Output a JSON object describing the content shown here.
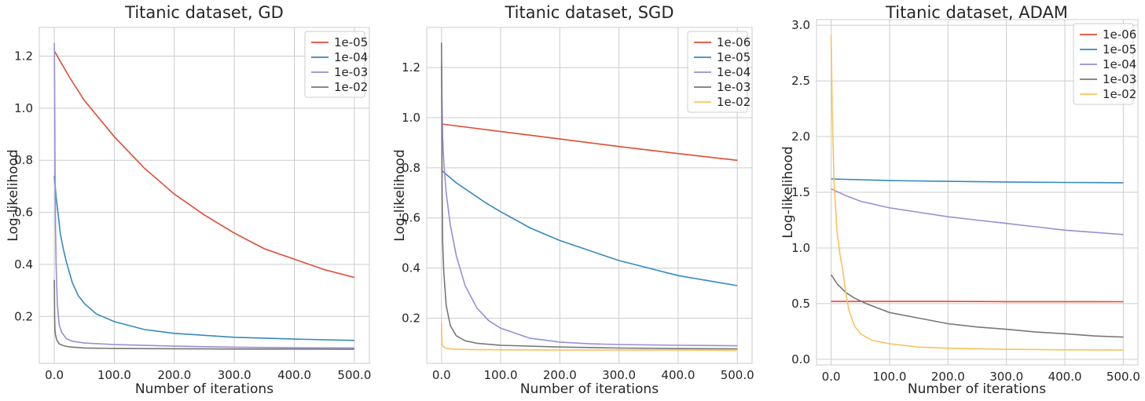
{
  "figure": {
    "background": "#ffffff",
    "colors": {
      "red": "#e24a33",
      "blue": "#348abd",
      "purple": "#988ed5",
      "gray": "#777777",
      "orange": "#fbc15e",
      "grid": "#cccccc",
      "text": "#262626"
    }
  },
  "chart_data": [
    {
      "type": "line",
      "title": "Titanic dataset, GD",
      "xlabel": "Number of iterations",
      "ylabel": "Log-likelihood",
      "xlim": [
        -25,
        525
      ],
      "ylim": [
        0.02,
        1.31
      ],
      "xticks": [
        0,
        100,
        200,
        300,
        400,
        500
      ],
      "xtick_labels": [
        "0.0",
        "100.0",
        "200.0",
        "300.0",
        "400.0",
        "500.0"
      ],
      "yticks": [
        0.2,
        0.4,
        0.6,
        0.8,
        1.0,
        1.2
      ],
      "ytick_labels": [
        "0.2",
        "0.4",
        "0.6",
        "0.8",
        "1.0",
        "1.2"
      ],
      "grid": true,
      "legend_position": "top-right",
      "series": [
        {
          "name": "1e-05",
          "color": "#e24a33",
          "x": [
            0,
            25,
            50,
            75,
            100,
            150,
            200,
            250,
            300,
            350,
            400,
            450,
            500
          ],
          "y": [
            1.22,
            1.12,
            1.03,
            0.96,
            0.89,
            0.77,
            0.67,
            0.59,
            0.52,
            0.46,
            0.42,
            0.38,
            0.35
          ]
        },
        {
          "name": "1e-04",
          "color": "#348abd",
          "x": [
            0,
            3,
            6,
            10,
            15,
            20,
            30,
            40,
            50,
            70,
            100,
            150,
            200,
            300,
            400,
            500
          ],
          "y": [
            0.74,
            0.66,
            0.6,
            0.52,
            0.46,
            0.41,
            0.33,
            0.28,
            0.25,
            0.21,
            0.18,
            0.15,
            0.135,
            0.12,
            0.113,
            0.108
          ]
        },
        {
          "name": "1e-03",
          "color": "#988ed5",
          "x": [
            0,
            0.5,
            1,
            2,
            3,
            5,
            8,
            12,
            20,
            30,
            50,
            100,
            200,
            300,
            400,
            500
          ],
          "y": [
            1.25,
            1.1,
            0.85,
            0.55,
            0.4,
            0.25,
            0.17,
            0.14,
            0.115,
            0.105,
            0.098,
            0.092,
            0.086,
            0.082,
            0.08,
            0.079
          ]
        },
        {
          "name": "1e-02",
          "color": "#777777",
          "x": [
            0,
            0.5,
            1,
            2,
            4,
            8,
            15,
            25,
            50,
            100,
            200,
            300,
            400,
            500
          ],
          "y": [
            0.34,
            0.2,
            0.15,
            0.13,
            0.11,
            0.095,
            0.088,
            0.083,
            0.079,
            0.077,
            0.076,
            0.075,
            0.075,
            0.074
          ]
        }
      ]
    },
    {
      "type": "line",
      "title": "Titanic dataset, SGD",
      "xlabel": "Number of iterations",
      "ylabel": "Log-likelihood",
      "xlim": [
        -25,
        525
      ],
      "ylim": [
        0.02,
        1.36
      ],
      "xticks": [
        0,
        100,
        200,
        300,
        400,
        500
      ],
      "xtick_labels": [
        "0.0",
        "100.0",
        "200.0",
        "300.0",
        "400.0",
        "500.0"
      ],
      "yticks": [
        0.2,
        0.4,
        0.6,
        0.8,
        1.0,
        1.2
      ],
      "ytick_labels": [
        "0.2",
        "0.4",
        "0.6",
        "0.8",
        "1.0",
        "1.2"
      ],
      "grid": true,
      "legend_position": "top-right",
      "series": [
        {
          "name": "1e-06",
          "color": "#e24a33",
          "x": [
            0,
            100,
            200,
            300,
            400,
            500
          ],
          "y": [
            0.975,
            0.945,
            0.915,
            0.885,
            0.857,
            0.83
          ]
        },
        {
          "name": "1e-05",
          "color": "#348abd",
          "x": [
            0,
            25,
            50,
            75,
            100,
            150,
            200,
            250,
            300,
            350,
            400,
            450,
            500
          ],
          "y": [
            0.79,
            0.74,
            0.7,
            0.66,
            0.625,
            0.56,
            0.51,
            0.47,
            0.43,
            0.4,
            0.37,
            0.35,
            0.33
          ]
        },
        {
          "name": "1e-04",
          "color": "#988ed5",
          "x": [
            0,
            1,
            2,
            4,
            8,
            15,
            25,
            40,
            60,
            80,
            100,
            150,
            200,
            250,
            300,
            400,
            500
          ],
          "y": [
            1.22,
            1.05,
            0.92,
            0.82,
            0.7,
            0.57,
            0.45,
            0.33,
            0.24,
            0.19,
            0.16,
            0.12,
            0.105,
            0.098,
            0.095,
            0.092,
            0.09
          ]
        },
        {
          "name": "1e-03",
          "color": "#777777",
          "x": [
            0,
            0.5,
            1,
            2,
            4,
            8,
            15,
            25,
            40,
            60,
            100,
            200,
            300,
            400,
            500
          ],
          "y": [
            1.3,
            1.0,
            0.7,
            0.5,
            0.38,
            0.25,
            0.17,
            0.13,
            0.11,
            0.1,
            0.092,
            0.085,
            0.081,
            0.079,
            0.078
          ]
        },
        {
          "name": "1e-02",
          "color": "#fbc15e",
          "x": [
            0,
            0.5,
            1,
            2,
            4,
            8,
            20,
            50,
            100,
            200,
            300,
            400,
            500
          ],
          "y": [
            0.18,
            0.12,
            0.1,
            0.09,
            0.085,
            0.08,
            0.077,
            0.075,
            0.074,
            0.073,
            0.073,
            0.073,
            0.072
          ]
        }
      ]
    },
    {
      "type": "line",
      "title": "Titanic dataset, ADAM",
      "xlabel": "Number of iterations",
      "ylabel": "Log-likelihood",
      "xlim": [
        -25,
        525
      ],
      "ylim": [
        -0.05,
        3.05
      ],
      "xticks": [
        0,
        100,
        200,
        300,
        400,
        500
      ],
      "xtick_labels": [
        "0.0",
        "100.0",
        "200.0",
        "300.0",
        "400.0",
        "500.0"
      ],
      "yticks": [
        0.0,
        0.5,
        1.0,
        1.5,
        2.0,
        2.5,
        3.0
      ],
      "ytick_labels": [
        "0.0",
        "0.5",
        "1.0",
        "1.5",
        "2.0",
        "2.5",
        "3.0"
      ],
      "grid": true,
      "legend_position": "top-right",
      "series": [
        {
          "name": "1e-06",
          "color": "#e24a33",
          "x": [
            0,
            100,
            200,
            300,
            400,
            500
          ],
          "y": [
            0.52,
            0.52,
            0.52,
            0.518,
            0.518,
            0.517
          ]
        },
        {
          "name": "1e-05",
          "color": "#348abd",
          "x": [
            0,
            100,
            200,
            300,
            400,
            500
          ],
          "y": [
            1.62,
            1.605,
            1.598,
            1.592,
            1.588,
            1.585
          ]
        },
        {
          "name": "1e-04",
          "color": "#988ed5",
          "x": [
            0,
            25,
            50,
            100,
            150,
            200,
            250,
            300,
            350,
            400,
            450,
            500
          ],
          "y": [
            1.53,
            1.47,
            1.42,
            1.36,
            1.32,
            1.28,
            1.25,
            1.22,
            1.19,
            1.16,
            1.14,
            1.12
          ]
        },
        {
          "name": "1e-03",
          "color": "#777777",
          "x": [
            0,
            10,
            25,
            40,
            60,
            80,
            100,
            150,
            200,
            250,
            300,
            350,
            400,
            450,
            500
          ],
          "y": [
            0.76,
            0.68,
            0.6,
            0.55,
            0.5,
            0.46,
            0.42,
            0.37,
            0.32,
            0.29,
            0.27,
            0.245,
            0.23,
            0.21,
            0.2
          ]
        },
        {
          "name": "1e-02",
          "color": "#fbc15e",
          "x": [
            0,
            2,
            5,
            10,
            15,
            20,
            25,
            30,
            40,
            50,
            70,
            100,
            150,
            200,
            300,
            400,
            500
          ],
          "y": [
            2.91,
            2.2,
            1.6,
            1.15,
            0.95,
            0.8,
            0.6,
            0.45,
            0.3,
            0.23,
            0.17,
            0.14,
            0.11,
            0.1,
            0.09,
            0.085,
            0.083
          ]
        }
      ]
    }
  ]
}
